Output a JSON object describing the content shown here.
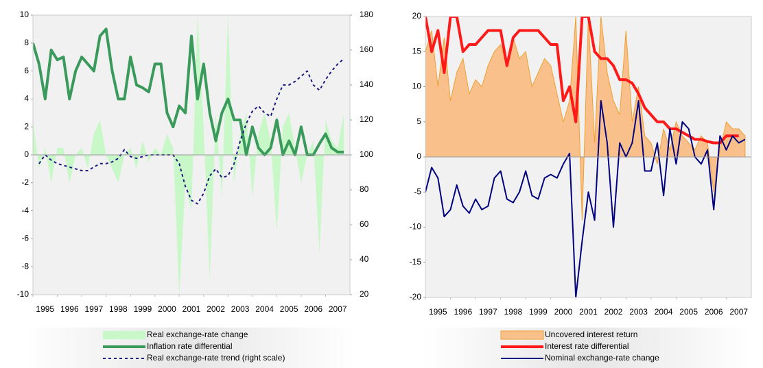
{
  "chart_data": [
    {
      "type": "line",
      "xlim": [
        1995,
        2008
      ],
      "xticks": [
        1995,
        1996,
        1997,
        1998,
        1999,
        2000,
        2001,
        2002,
        2003,
        2004,
        2005,
        2006,
        2007
      ],
      "ylim": [
        -10,
        10
      ],
      "yticks": [
        -10,
        -8,
        -6,
        -4,
        -2,
        0,
        2,
        4,
        6,
        8,
        10
      ],
      "y2lim": [
        20,
        180
      ],
      "y2ticks": [
        20,
        40,
        60,
        80,
        100,
        120,
        140,
        160,
        180
      ],
      "x": [
        1995,
        1995.25,
        1995.5,
        1995.75,
        1996,
        1996.25,
        1996.5,
        1996.75,
        1997,
        1997.25,
        1997.5,
        1997.75,
        1998,
        1998.25,
        1998.5,
        1998.75,
        1999,
        1999.25,
        1999.5,
        1999.75,
        2000,
        2000.25,
        2000.5,
        2000.75,
        2001,
        2001.25,
        2001.5,
        2001.75,
        2002,
        2002.25,
        2002.5,
        2002.75,
        2003,
        2003.25,
        2003.5,
        2003.75,
        2004,
        2004.25,
        2004.5,
        2004.75,
        2005,
        2005.25,
        2005.5,
        2005.75,
        2006,
        2006.25,
        2006.5,
        2006.75,
        2007,
        2007.25,
        2007.5,
        2007.75
      ],
      "series": [
        {
          "name": "Real exchange-rate change",
          "style": "area",
          "color": "#c8f7c8",
          "values": [
            2.5,
            -1,
            0.5,
            -2,
            0.5,
            0.5,
            -2,
            0,
            0.5,
            -1,
            1.5,
            2.5,
            0,
            -1,
            -2,
            0,
            0.5,
            -1,
            1,
            -0.5,
            0.5,
            0,
            1.5,
            0.5,
            -10,
            -2,
            -4,
            10,
            2,
            -9,
            3,
            -3,
            10,
            -2,
            1.5,
            3,
            -3,
            1.5,
            3,
            1,
            -5.5,
            2,
            3,
            0.5,
            -2,
            0,
            1,
            -7,
            2.5,
            1,
            0.5,
            3
          ]
        },
        {
          "name": "Inflation rate differential",
          "style": "line",
          "color": "#3a9a5c",
          "values": [
            8,
            6.5,
            4,
            7.5,
            6.8,
            7,
            4,
            6,
            7,
            6.5,
            6,
            8.5,
            9,
            6,
            4,
            4,
            7,
            5,
            4.8,
            4.5,
            6.5,
            6.5,
            3,
            2,
            3.5,
            3,
            8.5,
            4,
            6.5,
            3,
            1,
            3,
            4,
            2.5,
            2.5,
            0,
            2,
            0.5,
            0,
            0.5,
            2.5,
            0,
            1,
            0,
            2,
            0,
            0,
            0.8,
            1.5,
            0.5,
            0.2,
            0.2
          ]
        },
        {
          "name": "Real exchange-rate trend (right scale)",
          "style": "dotted",
          "axis": "y2",
          "color": "#1a1a80",
          "values": [
            null,
            95,
            100,
            97,
            95,
            94,
            93,
            92,
            91,
            91,
            93,
            95,
            95,
            96,
            98,
            103,
            99,
            98,
            99,
            100,
            100,
            100,
            100,
            100,
            95,
            82,
            74,
            72,
            78,
            88,
            92,
            87,
            88,
            95,
            108,
            118,
            125,
            128,
            124,
            122,
            132,
            140,
            140,
            142,
            145,
            148,
            140,
            137,
            143,
            148,
            152,
            155
          ]
        }
      ]
    },
    {
      "type": "line",
      "xlim": [
        1995,
        2008
      ],
      "xticks": [
        1995,
        1996,
        1997,
        1998,
        1999,
        2000,
        2001,
        2002,
        2003,
        2004,
        2005,
        2006,
        2007
      ],
      "ylim": [
        -20,
        20
      ],
      "yticks": [
        -20,
        -15,
        -10,
        -5,
        0,
        5,
        10,
        15,
        20
      ],
      "x": [
        1995,
        1995.25,
        1995.5,
        1995.75,
        1996,
        1996.25,
        1996.5,
        1996.75,
        1997,
        1997.25,
        1997.5,
        1997.75,
        1998,
        1998.25,
        1998.5,
        1998.75,
        1999,
        1999.25,
        1999.5,
        1999.75,
        2000,
        2000.25,
        2000.5,
        2000.75,
        2001,
        2001.25,
        2001.5,
        2001.75,
        2002,
        2002.25,
        2002.5,
        2002.75,
        2003,
        2003.25,
        2003.5,
        2003.75,
        2004,
        2004.25,
        2004.5,
        2004.75,
        2005,
        2005.25,
        2005.5,
        2005.75,
        2006,
        2006.25,
        2006.5,
        2006.75,
        2007,
        2007.25,
        2007.5,
        2007.75
      ],
      "series": [
        {
          "name": "Uncovered interest return",
          "style": "area",
          "color": "#f9c08c",
          "stroke": "#eda030",
          "values": [
            15,
            18,
            10,
            17,
            8,
            12,
            14,
            9,
            11,
            10,
            13,
            15,
            16,
            13,
            17,
            14,
            15,
            10,
            12,
            14,
            13,
            9,
            5,
            8,
            20,
            -9,
            20,
            2,
            20,
            12,
            8,
            6,
            18,
            5,
            10,
            3,
            2,
            -1,
            4,
            1,
            5,
            3,
            2,
            1,
            3,
            2,
            -5,
            1,
            5,
            4,
            4,
            3
          ]
        },
        {
          "name": "Interest rate differential",
          "style": "line",
          "color": "#ff1a1a",
          "values": [
            20,
            15,
            18,
            12,
            20,
            20,
            15,
            16,
            16,
            17,
            18,
            18,
            18,
            13,
            17,
            18,
            18,
            18,
            18,
            17,
            16,
            16,
            8,
            10,
            5,
            20,
            20,
            15,
            14,
            14,
            13,
            11,
            11,
            10.5,
            9,
            7,
            6,
            5,
            5,
            4,
            4,
            3.5,
            3,
            2.5,
            2.5,
            2.2,
            2,
            2,
            3,
            3,
            3,
            null
          ]
        },
        {
          "name": "Nominal exchange-rate change",
          "style": "thin",
          "color": "#000080",
          "values": [
            -5,
            -1.5,
            -3,
            -8.5,
            -7.5,
            -4,
            -7,
            -8,
            -6,
            -7.5,
            -7,
            -3,
            -2,
            -6,
            -6.5,
            -5,
            -2,
            -5.5,
            -6,
            -3,
            -2.5,
            -3,
            -1,
            0.5,
            -20,
            -12,
            -5,
            -9,
            8,
            2,
            -10,
            2,
            0,
            2,
            8,
            -2,
            -2,
            2,
            -5.5,
            4,
            -1,
            5,
            4,
            0,
            -1,
            1,
            -7.5,
            3,
            1,
            3,
            2,
            2.5
          ]
        }
      ]
    }
  ]
}
